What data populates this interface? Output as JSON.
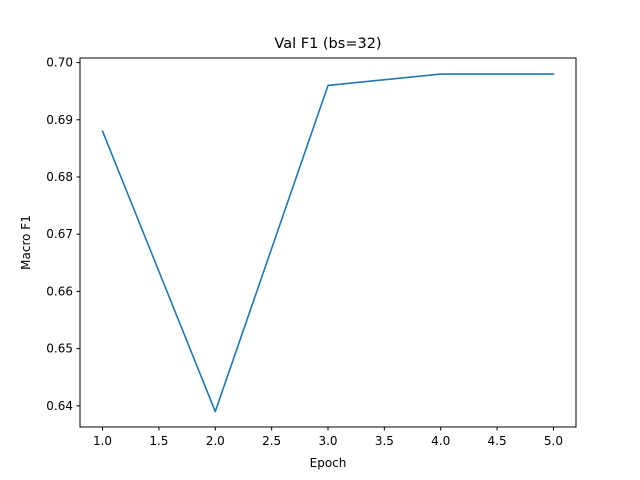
{
  "chart_data": {
    "type": "line",
    "title": "Val F1 (bs=32)",
    "xlabel": "Epoch",
    "ylabel": "Macro F1",
    "xlim": [
      0.8,
      5.2
    ],
    "ylim": [
      0.6363,
      0.7008
    ],
    "xticks": [
      "1.0",
      "1.5",
      "2.0",
      "2.5",
      "3.0",
      "3.5",
      "4.0",
      "4.5",
      "5.0"
    ],
    "yticks": [
      "0.64",
      "0.65",
      "0.66",
      "0.67",
      "0.68",
      "0.69",
      "0.70"
    ],
    "grid": false,
    "series": [
      {
        "x": [
          1,
          2,
          3,
          4,
          5
        ],
        "y": [
          0.688,
          0.639,
          0.696,
          0.698,
          0.698
        ],
        "color": "#1f77b4"
      }
    ]
  }
}
